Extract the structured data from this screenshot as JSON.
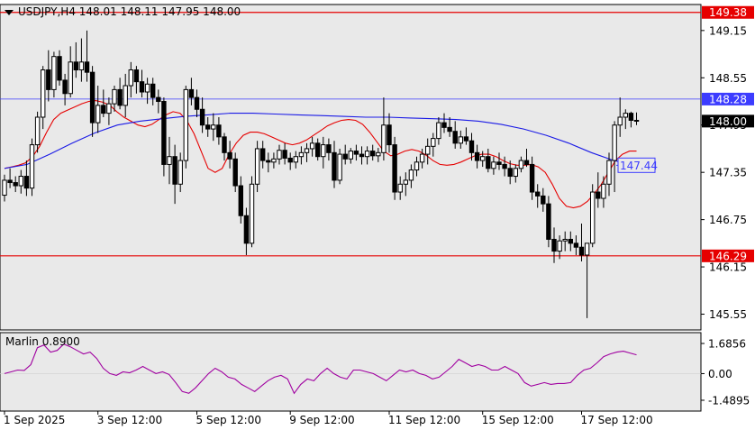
{
  "header": {
    "symbol_info": "USDJPY,H4  148.01 148.11 147.95 148.00"
  },
  "indicator_panel": {
    "label": "Marlin 0.8900"
  },
  "colors": {
    "background": "#e9e9e9",
    "candle": "#000000",
    "red_ma": "#e60000",
    "blue_ma": "#1a1ae6",
    "level_line": "#e60000",
    "blue_level": "#3c3cff",
    "oscillator": "#a000a0"
  },
  "chart_data": [
    {
      "type": "candlestick",
      "symbol": "USDJPY",
      "timeframe": "H4",
      "ylim": [
        145.35,
        149.48
      ],
      "price_ticks": [
        "149.15",
        "148.55",
        "147.95",
        "147.35",
        "146.75",
        "146.15",
        "145.55"
      ],
      "time_labels": [
        "1 Sep 2025",
        "3 Sep 12:00",
        "5 Sep 12:00",
        "9 Sep 12:00",
        "11 Sep 12:00",
        "15 Sep 12:00",
        "17 Sep 12:00"
      ],
      "time_label_bars": [
        0,
        17,
        35,
        52,
        70,
        87,
        105
      ],
      "levels": [
        {
          "label": "149.38",
          "value": 149.38,
          "kind": "red"
        },
        {
          "label": "148.28",
          "value": 148.28,
          "kind": "blue"
        },
        {
          "label": "146.29",
          "value": 146.29,
          "kind": "red"
        }
      ],
      "current_price_label": "148.00",
      "current_price": 148.0,
      "ma_label": "147.44",
      "ma_label_value": 147.44,
      "candles": [
        [
          147.06,
          147.32,
          146.98,
          147.25
        ],
        [
          147.25,
          147.4,
          147.15,
          147.22
        ],
        [
          147.22,
          147.3,
          147.1,
          147.18
        ],
        [
          147.18,
          147.38,
          147.08,
          147.3
        ],
        [
          147.3,
          147.5,
          147.05,
          147.15
        ],
        [
          147.15,
          147.78,
          147.05,
          147.7
        ],
        [
          147.7,
          148.12,
          147.6,
          148.05
        ],
        [
          148.05,
          148.7,
          147.9,
          148.65
        ],
        [
          148.65,
          148.9,
          148.25,
          148.4
        ],
        [
          148.4,
          148.88,
          148.3,
          148.82
        ],
        [
          148.82,
          148.9,
          148.45,
          148.52
        ],
        [
          148.52,
          148.6,
          148.2,
          148.35
        ],
        [
          148.35,
          148.95,
          148.3,
          148.75
        ],
        [
          148.75,
          149.0,
          148.55,
          148.65
        ],
        [
          148.65,
          149.05,
          148.5,
          148.75
        ],
        [
          148.75,
          149.15,
          148.5,
          148.62
        ],
        [
          148.62,
          148.7,
          147.8,
          147.98
        ],
        [
          147.98,
          148.45,
          147.85,
          148.2
        ],
        [
          148.2,
          148.4,
          148.05,
          148.1
        ],
        [
          148.1,
          148.3,
          147.95,
          148.22
        ],
        [
          148.22,
          148.45,
          148.12,
          148.4
        ],
        [
          148.4,
          148.55,
          148.15,
          148.2
        ],
        [
          148.2,
          148.6,
          148.05,
          148.45
        ],
        [
          148.45,
          148.75,
          148.3,
          148.65
        ],
        [
          148.65,
          148.7,
          148.35,
          148.5
        ],
        [
          148.5,
          148.65,
          148.3,
          148.37
        ],
        [
          148.37,
          148.55,
          148.22,
          148.47
        ],
        [
          148.47,
          148.55,
          148.2,
          148.3
        ],
        [
          148.3,
          148.4,
          148.1,
          148.25
        ],
        [
          148.25,
          148.3,
          147.3,
          147.45
        ],
        [
          147.45,
          147.8,
          147.2,
          147.55
        ],
        [
          147.55,
          147.7,
          146.95,
          147.2
        ],
        [
          147.2,
          147.6,
          147.1,
          147.5
        ],
        [
          147.5,
          148.45,
          147.4,
          148.4
        ],
        [
          148.4,
          148.55,
          148.2,
          148.3
        ],
        [
          148.3,
          148.4,
          148.05,
          148.15
        ],
        [
          148.15,
          148.3,
          147.85,
          147.95
        ],
        [
          147.95,
          148.05,
          147.8,
          147.9
        ],
        [
          147.9,
          148.1,
          147.75,
          147.95
        ],
        [
          147.95,
          148.05,
          147.7,
          147.8
        ],
        [
          147.8,
          147.85,
          147.5,
          147.6
        ],
        [
          147.6,
          147.75,
          147.4,
          147.52
        ],
        [
          147.52,
          147.6,
          147.1,
          147.18
        ],
        [
          147.18,
          147.3,
          146.7,
          146.8
        ],
        [
          146.8,
          146.9,
          146.3,
          146.45
        ],
        [
          146.45,
          147.3,
          146.4,
          147.2
        ],
        [
          147.2,
          147.75,
          147.1,
          147.65
        ],
        [
          147.65,
          147.75,
          147.4,
          147.5
        ],
        [
          147.5,
          147.6,
          147.35,
          147.48
        ],
        [
          147.48,
          147.6,
          147.4,
          147.52
        ],
        [
          147.52,
          147.7,
          147.45,
          147.63
        ],
        [
          147.63,
          147.72,
          147.45,
          147.53
        ],
        [
          147.53,
          147.6,
          147.38,
          147.48
        ],
        [
          147.48,
          147.62,
          147.4,
          147.55
        ],
        [
          147.55,
          147.68,
          147.45,
          147.6
        ],
        [
          147.6,
          147.72,
          147.48,
          147.65
        ],
        [
          147.65,
          147.8,
          147.55,
          147.72
        ],
        [
          147.72,
          147.78,
          147.5,
          147.55
        ],
        [
          147.55,
          147.8,
          147.4,
          147.7
        ],
        [
          147.7,
          147.78,
          147.5,
          147.6
        ],
        [
          147.6,
          147.75,
          147.15,
          147.25
        ],
        [
          147.25,
          147.65,
          147.2,
          147.58
        ],
        [
          147.58,
          147.7,
          147.45,
          147.52
        ],
        [
          147.52,
          147.66,
          147.46,
          147.62
        ],
        [
          147.62,
          147.7,
          147.5,
          147.58
        ],
        [
          147.58,
          147.68,
          147.45,
          147.55
        ],
        [
          147.55,
          147.68,
          147.45,
          147.62
        ],
        [
          147.62,
          147.7,
          147.5,
          147.56
        ],
        [
          147.56,
          147.66,
          147.48,
          147.6
        ],
        [
          147.6,
          148.3,
          147.5,
          147.95
        ],
        [
          147.95,
          148.1,
          147.6,
          147.7
        ],
        [
          147.7,
          147.8,
          147.0,
          147.1
        ],
        [
          147.1,
          147.3,
          147.0,
          147.2
        ],
        [
          147.2,
          147.35,
          147.05,
          147.25
        ],
        [
          147.25,
          147.45,
          147.15,
          147.38
        ],
        [
          147.38,
          147.55,
          147.3,
          147.48
        ],
        [
          147.48,
          147.65,
          147.4,
          147.58
        ],
        [
          147.58,
          147.78,
          147.45,
          147.68
        ],
        [
          147.68,
          147.85,
          147.55,
          147.78
        ],
        [
          147.78,
          148.05,
          147.7,
          147.98
        ],
        [
          147.98,
          148.1,
          147.85,
          147.92
        ],
        [
          147.92,
          148.05,
          147.8,
          147.87
        ],
        [
          147.87,
          148.0,
          147.65,
          147.72
        ],
        [
          147.72,
          147.88,
          147.65,
          147.8
        ],
        [
          147.8,
          147.92,
          147.7,
          147.75
        ],
        [
          147.75,
          147.85,
          147.5,
          147.6
        ],
        [
          147.6,
          147.7,
          147.4,
          147.5
        ],
        [
          147.5,
          147.62,
          147.42,
          147.55
        ],
        [
          147.55,
          147.65,
          147.35,
          147.4
        ],
        [
          147.4,
          147.55,
          147.32,
          147.48
        ],
        [
          147.48,
          147.6,
          147.38,
          147.45
        ],
        [
          147.45,
          147.55,
          147.3,
          147.4
        ],
        [
          147.4,
          147.5,
          147.2,
          147.3
        ],
        [
          147.3,
          147.45,
          147.22,
          147.4
        ],
        [
          147.4,
          147.55,
          147.35,
          147.5
        ],
        [
          147.5,
          147.65,
          147.42,
          147.45
        ],
        [
          147.45,
          147.55,
          147.0,
          147.1
        ],
        [
          147.1,
          147.2,
          146.9,
          147.05
        ],
        [
          147.05,
          147.15,
          146.85,
          146.95
        ],
        [
          146.95,
          147.05,
          146.4,
          146.5
        ],
        [
          146.5,
          146.65,
          146.2,
          146.35
        ],
        [
          146.35,
          146.55,
          146.25,
          146.48
        ],
        [
          146.48,
          146.6,
          146.35,
          146.5
        ],
        [
          146.5,
          146.6,
          146.35,
          146.45
        ],
        [
          146.45,
          146.55,
          146.3,
          146.4
        ],
        [
          146.4,
          146.7,
          146.22,
          146.3
        ],
        [
          146.3,
          146.45,
          145.5,
          146.45
        ],
        [
          146.45,
          147.2,
          146.4,
          147.1
        ],
        [
          147.1,
          147.35,
          146.9,
          147.02
        ],
        [
          147.02,
          147.3,
          146.9,
          147.2
        ],
        [
          147.2,
          147.6,
          147.05,
          147.5
        ],
        [
          147.5,
          148.0,
          147.1,
          147.95
        ],
        [
          147.95,
          148.3,
          147.8,
          148.05
        ],
        [
          148.05,
          148.15,
          147.9,
          148.1
        ],
        [
          148.1,
          148.12,
          147.92,
          148.01
        ],
        [
          148.01,
          148.11,
          147.95,
          148.0
        ]
      ],
      "moving_averages": [
        {
          "name": "red",
          "values": [
            147.4,
            147.42,
            147.44,
            147.47,
            147.55,
            147.68,
            147.86,
            148.02,
            148.1,
            148.14,
            148.18,
            148.22,
            148.25,
            148.26,
            148.24,
            148.2,
            148.12,
            148.05,
            148.0,
            147.95,
            147.93,
            147.96,
            148.02,
            148.08,
            148.12,
            148.1,
            148.0,
            147.84,
            147.62,
            147.4,
            147.35,
            147.4,
            147.58,
            147.72,
            147.82,
            147.86,
            147.86,
            147.84,
            147.8,
            147.76,
            147.72,
            147.7,
            147.72,
            147.76,
            147.82,
            147.88,
            147.94,
            147.98,
            148.01,
            148.02,
            148.01,
            147.96,
            147.86,
            147.74,
            147.62,
            147.56,
            147.58,
            147.62,
            147.64,
            147.62,
            147.57,
            147.5,
            147.45,
            147.44,
            147.45,
            147.48,
            147.52,
            147.56,
            147.58,
            147.58,
            147.55,
            147.5,
            147.46,
            147.44,
            147.44,
            147.45,
            147.42,
            147.35,
            147.2,
            147.02,
            146.92,
            146.9,
            146.92,
            146.98,
            147.08,
            147.2,
            147.35,
            147.5,
            147.58,
            147.62,
            147.62
          ]
        },
        {
          "name": "blue",
          "values": [
            147.4,
            147.45,
            147.58,
            147.72,
            147.85,
            147.95,
            148.0,
            148.03,
            148.06,
            148.08,
            148.1,
            148.1,
            148.09,
            148.08,
            148.07,
            148.06,
            148.05,
            148.05,
            148.04,
            148.03,
            148.02,
            148.0,
            147.96,
            147.9,
            147.82,
            147.72,
            147.6,
            147.5,
            147.44
          ]
        }
      ],
      "oscillator": {
        "name": "Marlin",
        "param": "0.8900",
        "ylim": [
          -1.4895,
          1.6856
        ],
        "ticks": [
          "1.6856",
          "0.00",
          "-1.4895"
        ],
        "values": [
          0.0,
          0.1,
          0.2,
          0.18,
          0.5,
          1.45,
          1.6,
          1.2,
          1.3,
          1.65,
          1.5,
          1.3,
          1.1,
          1.2,
          0.85,
          0.3,
          0.0,
          -0.1,
          0.1,
          0.05,
          0.2,
          0.4,
          0.2,
          0.0,
          0.1,
          -0.05,
          -0.5,
          -1.0,
          -1.1,
          -0.8,
          -0.4,
          0.0,
          0.3,
          0.1,
          -0.2,
          -0.3,
          -0.6,
          -0.8,
          -1.0,
          -0.7,
          -0.4,
          -0.2,
          -0.1,
          -0.3,
          -1.1,
          -0.6,
          -0.3,
          -0.4,
          0.0,
          0.3,
          0.0,
          -0.2,
          -0.3,
          0.2,
          0.2,
          0.1,
          0.0,
          -0.2,
          -0.4,
          -0.1,
          0.2,
          0.1,
          0.2,
          0.0,
          -0.1,
          -0.3,
          -0.2,
          0.1,
          0.4,
          0.8,
          0.6,
          0.4,
          0.5,
          0.4,
          0.2,
          0.2,
          0.4,
          0.2,
          0.0,
          -0.5,
          -0.7,
          -0.6,
          -0.5,
          -0.6,
          -0.55,
          -0.55,
          -0.5,
          -0.1,
          0.2,
          0.3,
          0.6,
          0.95,
          1.1,
          1.2,
          1.25,
          1.15,
          1.05
        ]
      }
    }
  ]
}
